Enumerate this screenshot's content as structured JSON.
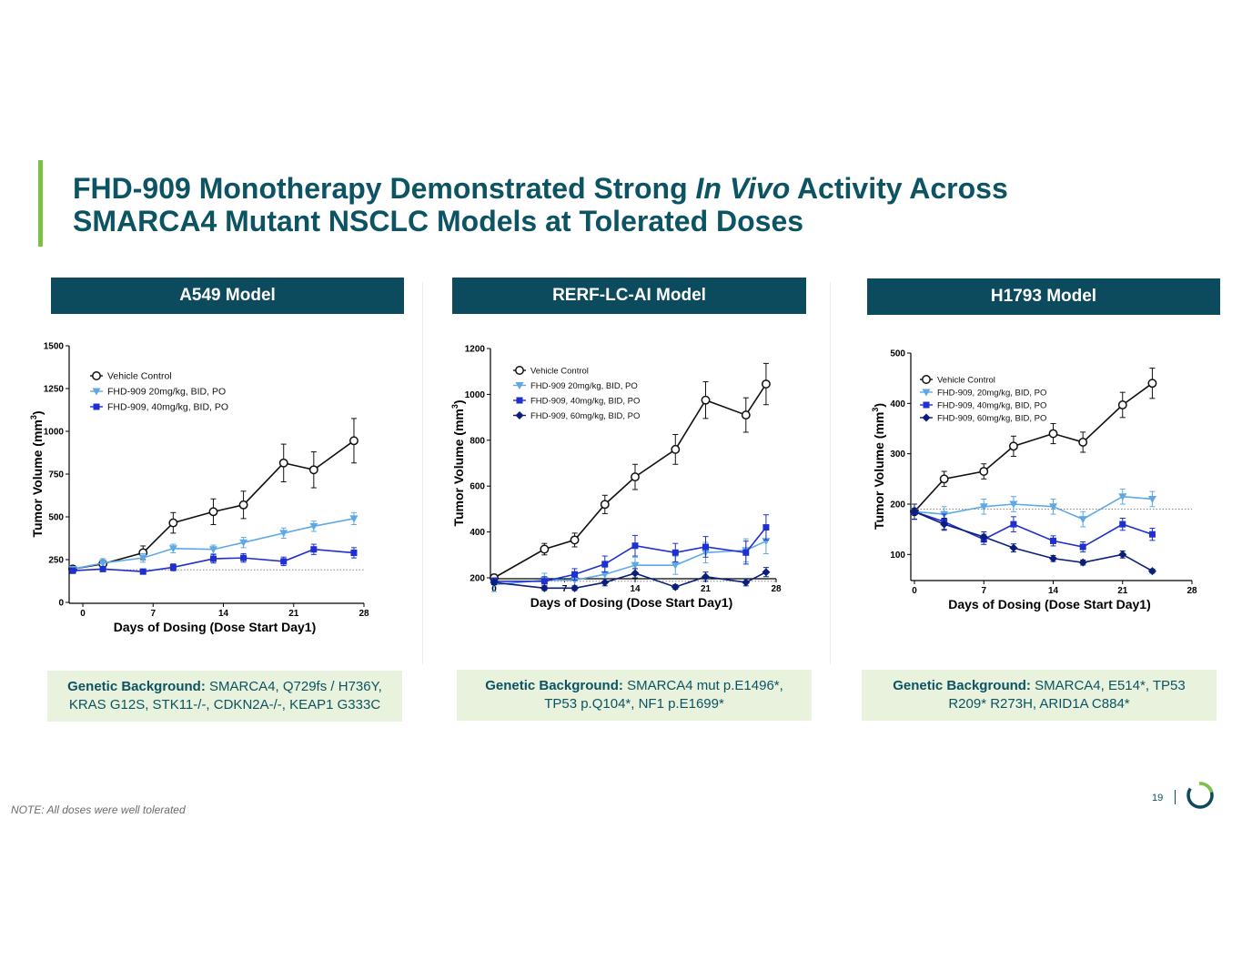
{
  "slide": {
    "title_pre": "FHD-909 Monotherapy Demonstrated Strong ",
    "title_italic": "In Vivo",
    "title_post": " Activity Across",
    "title_line2": "SMARCA4 Mutant NSCLC Models at Tolerated Doses",
    "note": "NOTE: All doses were well tolerated",
    "page_number": "19"
  },
  "panels": [
    {
      "header": "A549 Model",
      "genetic_label": "Genetic Background:",
      "genetic_text": "SMARCA4, Q729fs / H736Y, KRAS G12S, STK11-/-, CDKN2A-/-, KEAP1 G333C"
    },
    {
      "header": "RERF-LC-AI Model",
      "genetic_label": "Genetic Background:",
      "genetic_text": "SMARCA4 mut p.E1496*, TP53 p.Q104*, NF1 p.E1699*"
    },
    {
      "header": "H1793 Model",
      "genetic_label": "Genetic Background:",
      "genetic_text": "SMARCA4, E514*, TP53 R209* R273H, ARID1A C884*"
    }
  ],
  "colors": {
    "title": "#0c5363",
    "header_bg": "#0c4a5e",
    "accent": "#7dc142",
    "box_bg": "#e8f2dd",
    "vehicle": "#111111",
    "dose20": "#5fa8e6",
    "dose40": "#1f2fd0",
    "dose60": "#0b1f7a"
  },
  "chart_data": [
    {
      "type": "line",
      "title": "A549 Model",
      "xlabel": "Days of Dosing (Dose Start Day1)",
      "ylabel": "Tumor Volume (mm",
      "ylabel_sup": "3",
      "ylabel_close": ")",
      "xlim": [
        -1,
        28
      ],
      "ylim": [
        0,
        1500
      ],
      "xticks": [
        0,
        7,
        14,
        21,
        28
      ],
      "yticks": [
        0,
        250,
        500,
        750,
        1000,
        1250,
        1500
      ],
      "baseline": 190,
      "legend_position": "top-left",
      "series": [
        {
          "name": "Vehicle Control",
          "marker": "circle-open",
          "color": "#111111",
          "x": [
            -1,
            2,
            6,
            9,
            13,
            16,
            20,
            23,
            27
          ],
          "y": [
            195,
            225,
            290,
            465,
            530,
            570,
            815,
            775,
            945
          ],
          "err": [
            20,
            30,
            40,
            60,
            75,
            80,
            110,
            105,
            130
          ]
        },
        {
          "name": "FHD-909 20mg/kg, BID, PO",
          "marker": "triangle-down",
          "color": "#5fa8e6",
          "x": [
            -1,
            2,
            6,
            9,
            13,
            16,
            20,
            23,
            27
          ],
          "y": [
            195,
            230,
            260,
            315,
            310,
            350,
            405,
            445,
            490
          ],
          "err": [
            15,
            25,
            25,
            25,
            25,
            30,
            30,
            30,
            35
          ]
        },
        {
          "name": "FHD-909, 40mg/kg, BID, PO",
          "marker": "square",
          "color": "#1f2fd0",
          "x": [
            -1,
            2,
            6,
            9,
            13,
            16,
            20,
            23,
            27
          ],
          "y": [
            185,
            195,
            180,
            205,
            255,
            260,
            240,
            310,
            290
          ],
          "err": [
            15,
            15,
            15,
            20,
            25,
            25,
            25,
            30,
            30
          ]
        }
      ]
    },
    {
      "type": "line",
      "title": "RERF-LC-AI Model",
      "xlabel": "Days of Dosing (Dose Start Day1)",
      "ylabel": "Tumor Volume (mm",
      "ylabel_sup": "3",
      "ylabel_close": ")",
      "xlim": [
        0,
        28
      ],
      "ylim": [
        200,
        1200
      ],
      "xticks": [
        0,
        7,
        14,
        21,
        28
      ],
      "yticks": [
        200,
        400,
        600,
        800,
        1000,
        1200
      ],
      "baseline": 185,
      "legend_position": "top-left",
      "series": [
        {
          "name": "Vehicle Control",
          "marker": "circle-open",
          "color": "#111111",
          "x": [
            0,
            5,
            8,
            11,
            14,
            18,
            21,
            25,
            27
          ],
          "y": [
            200,
            325,
            365,
            520,
            640,
            760,
            975,
            910,
            1045
          ],
          "err": [
            15,
            25,
            30,
            40,
            55,
            65,
            80,
            75,
            90
          ]
        },
        {
          "name": "FHD-909 20mg/kg, BID, PO",
          "marker": "triangle-down",
          "color": "#5fa8e6",
          "x": [
            0,
            5,
            8,
            11,
            14,
            18,
            21,
            25,
            27
          ],
          "y": [
            170,
            190,
            190,
            215,
            255,
            255,
            310,
            320,
            360
          ],
          "err": [
            30,
            30,
            30,
            30,
            35,
            40,
            45,
            50,
            55
          ]
        },
        {
          "name": "FHD-909, 40mg/kg, BID, PO",
          "marker": "square",
          "color": "#1f2fd0",
          "x": [
            0,
            5,
            8,
            11,
            14,
            18,
            21,
            25,
            27
          ],
          "y": [
            185,
            185,
            215,
            260,
            340,
            310,
            335,
            310,
            420
          ],
          "err": [
            15,
            20,
            25,
            35,
            45,
            40,
            45,
            50,
            55
          ]
        },
        {
          "name": "FHD-909, 60mg/kg, BID, PO",
          "marker": "diamond",
          "color": "#0b1f7a",
          "x": [
            0,
            5,
            8,
            11,
            14,
            18,
            21,
            25,
            27
          ],
          "y": [
            180,
            155,
            155,
            180,
            220,
            160,
            205,
            180,
            225
          ],
          "err": [
            10,
            10,
            10,
            15,
            20,
            10,
            20,
            15,
            20
          ]
        }
      ]
    },
    {
      "type": "line",
      "title": "H1793 Model",
      "xlabel": "Days of Dosing (Dose Start Day1)",
      "ylabel": "Tumor Volume (mm",
      "ylabel_sup": "3",
      "ylabel_close": ")",
      "xlim": [
        0,
        28
      ],
      "ylim": [
        50,
        500
      ],
      "xticks": [
        0,
        7,
        14,
        21,
        28
      ],
      "yticks": [
        100,
        200,
        300,
        400,
        500
      ],
      "baseline": 190,
      "legend_position": "top-left",
      "series": [
        {
          "name": "Vehicle Control",
          "marker": "circle-open",
          "color": "#111111",
          "x": [
            0,
            3,
            7,
            10,
            14,
            17,
            21,
            24
          ],
          "y": [
            185,
            250,
            265,
            315,
            340,
            323,
            397,
            440
          ],
          "err": [
            15,
            15,
            15,
            20,
            20,
            20,
            25,
            30
          ]
        },
        {
          "name": "FHD-909, 20mg/kg, BID, PO",
          "marker": "triangle-down",
          "color": "#5fa8e6",
          "x": [
            0,
            3,
            7,
            10,
            14,
            17,
            21,
            24
          ],
          "y": [
            185,
            180,
            195,
            200,
            195,
            170,
            215,
            210
          ],
          "err": [
            15,
            15,
            15,
            15,
            15,
            15,
            15,
            15
          ]
        },
        {
          "name": "FHD-909, 40mg/kg, BID, PO",
          "marker": "square",
          "color": "#1f2fd0",
          "x": [
            0,
            3,
            7,
            10,
            14,
            17,
            21,
            24
          ],
          "y": [
            185,
            165,
            130,
            160,
            127,
            115,
            160,
            140
          ],
          "err": [
            15,
            15,
            10,
            15,
            10,
            10,
            12,
            12
          ]
        },
        {
          "name": "FHD-909, 60mg/kg, BID, PO",
          "marker": "diamond",
          "color": "#0b1f7a",
          "x": [
            0,
            3,
            7,
            10,
            14,
            17,
            21,
            24
          ],
          "y": [
            185,
            160,
            135,
            113,
            92,
            84,
            100,
            67
          ],
          "err": [
            15,
            12,
            10,
            8,
            6,
            5,
            7,
            4
          ]
        }
      ]
    }
  ]
}
